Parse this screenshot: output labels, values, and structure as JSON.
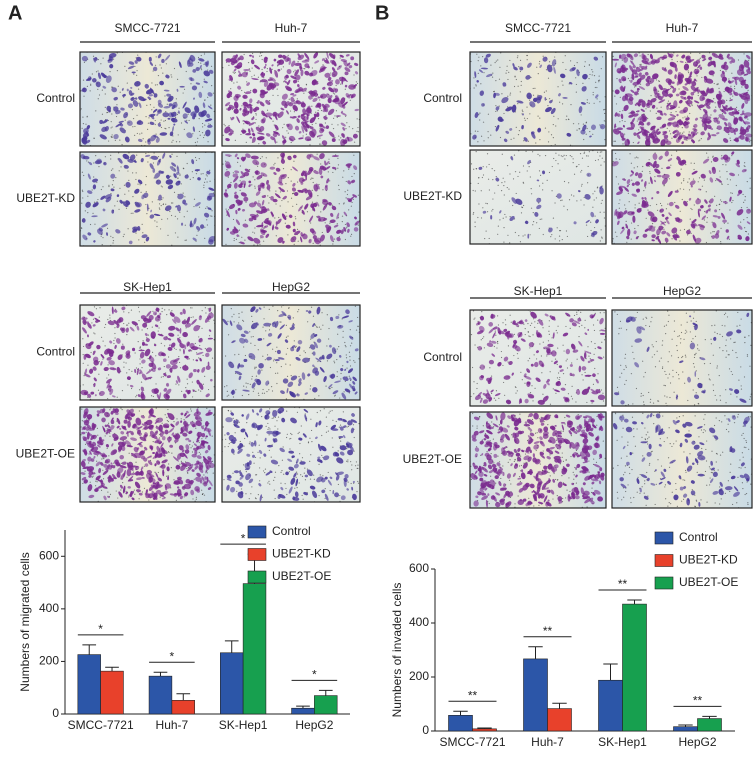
{
  "panels": [
    {
      "letter": "A",
      "blocks": [
        {
          "columns": [
            "SMCC-7721",
            "Huh-7"
          ],
          "rows": [
            "Control",
            "UBE2T-KD"
          ]
        },
        {
          "columns": [
            "SK-Hep1",
            "HepG2"
          ],
          "rows": [
            "Control",
            "UBE2T-OE"
          ]
        }
      ]
    },
    {
      "letter": "B",
      "blocks": [
        {
          "columns": [
            "SMCC-7721",
            "Huh-7"
          ],
          "rows": [
            "Control",
            "UBE2T-KD"
          ]
        },
        {
          "columns": [
            "SK-Hep1",
            "HepG2"
          ],
          "rows": [
            "Control",
            "UBE2T-OE"
          ]
        }
      ]
    }
  ],
  "chart_data": [
    {
      "type": "bar",
      "y_label": "Numbers of migrated cells",
      "categories": [
        "SMCC-7721",
        "Huh-7",
        "SK-Hep1",
        "HepG2"
      ],
      "series": [
        {
          "name": "Control",
          "color": "#2c56a8",
          "values": [
            226,
            144,
            233,
            22
          ],
          "errors": [
            37,
            15,
            45,
            8
          ]
        },
        {
          "name": "UBE2T-KD",
          "color": "#e8412b",
          "values": [
            163,
            52,
            null,
            null
          ],
          "errors": [
            15,
            25,
            null,
            null
          ]
        },
        {
          "name": "UBE2T-OE",
          "color": "#17a04f",
          "values": [
            null,
            null,
            496,
            70
          ],
          "errors": [
            null,
            null,
            112,
            20
          ]
        }
      ],
      "significance": [
        "*",
        "*",
        "*",
        "*"
      ],
      "ylim": [
        0,
        700
      ],
      "yticks": [
        0,
        200,
        400,
        600
      ]
    },
    {
      "type": "bar",
      "y_label": "Numbers of invaded cells",
      "categories": [
        "SMCC-7721",
        "Huh-7",
        "SK-Hep1",
        "HepG2"
      ],
      "series": [
        {
          "name": "Control",
          "color": "#2c56a8",
          "values": [
            58,
            267,
            188,
            16
          ],
          "errors": [
            15,
            45,
            60,
            6
          ]
        },
        {
          "name": "UBE2T-KD",
          "color": "#e8412b",
          "values": [
            8,
            83,
            null,
            null
          ],
          "errors": [
            3,
            20,
            null,
            null
          ]
        },
        {
          "name": "UBE2T-OE",
          "color": "#17a04f",
          "values": [
            null,
            null,
            470,
            46
          ],
          "errors": [
            null,
            null,
            15,
            8
          ]
        }
      ],
      "significance": [
        "**",
        "**",
        "**",
        "**"
      ],
      "ylim": [
        0,
        600
      ],
      "yticks": [
        0,
        200,
        400,
        600
      ]
    }
  ]
}
